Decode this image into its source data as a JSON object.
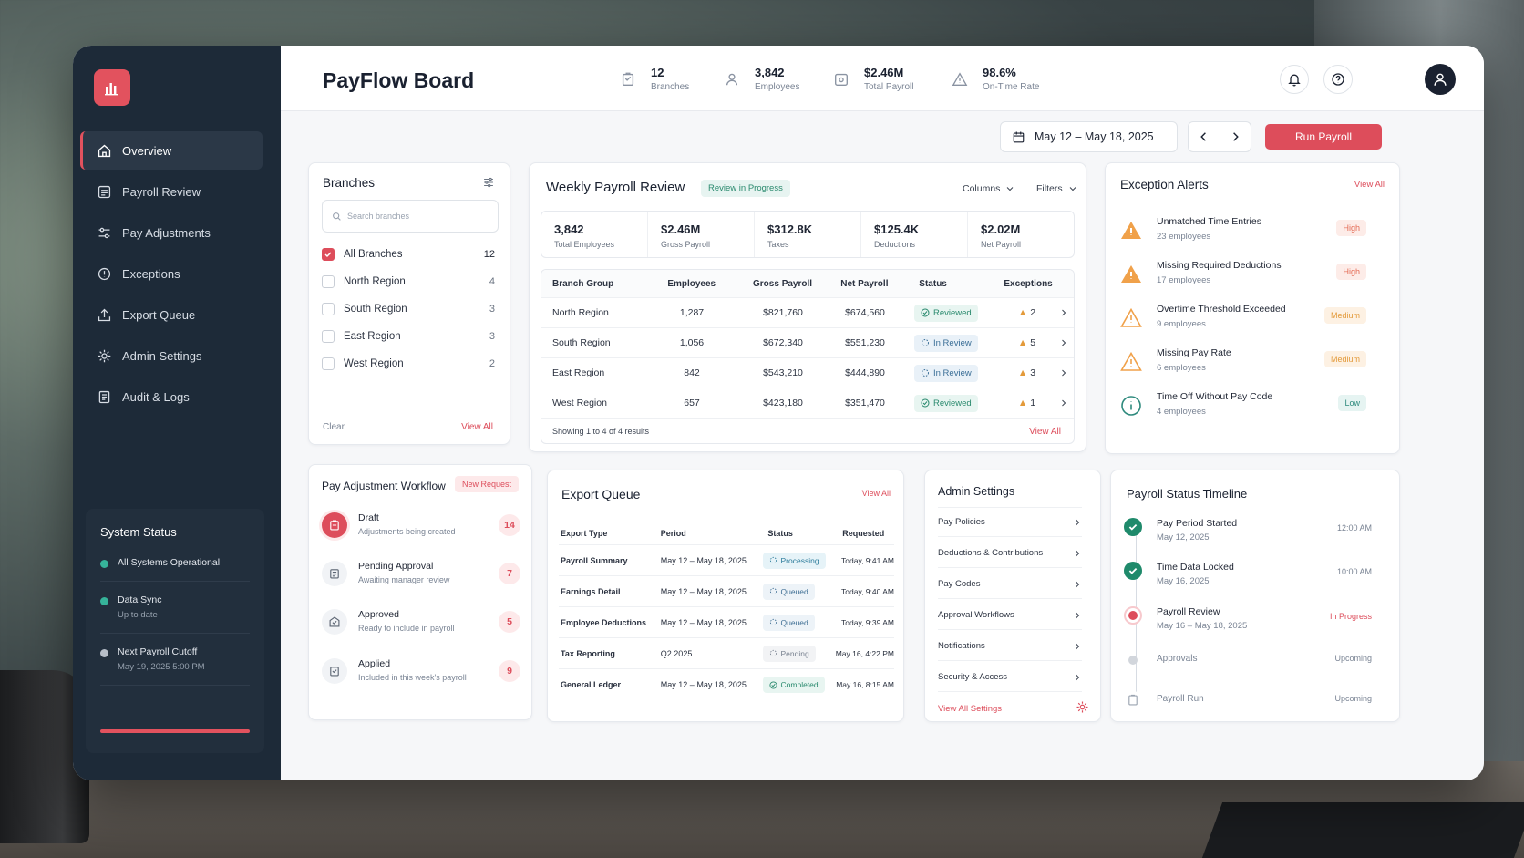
{
  "app": {
    "title": "PayFlow Board"
  },
  "stats": [
    {
      "value": "12",
      "label": "Branches",
      "icon": "branch-icon"
    },
    {
      "value": "3,842",
      "label": "Employees",
      "icon": "users-icon"
    },
    {
      "value": "$2.46M",
      "label": "Total Payroll",
      "icon": "wallet-icon"
    },
    {
      "value": "98.6%",
      "label": "On-Time Rate",
      "icon": "warning-icon"
    }
  ],
  "nav": [
    {
      "label": "Overview",
      "icon": "home-icon"
    },
    {
      "label": "Payroll Review",
      "icon": "review-icon"
    },
    {
      "label": "Pay Adjustments",
      "icon": "adjust-icon"
    },
    {
      "label": "Exceptions",
      "icon": "alert-icon"
    },
    {
      "label": "Export Queue",
      "icon": "export-icon"
    },
    {
      "label": "Admin Settings",
      "icon": "gear-icon"
    },
    {
      "label": "Audit & Logs",
      "icon": "log-icon"
    }
  ],
  "system": {
    "title": "System Status",
    "items": [
      {
        "main": "All Systems Operational",
        "sub": "",
        "color": "#36b39a"
      },
      {
        "main": "Data Sync",
        "sub": "Up to date",
        "color": "#36b39a"
      },
      {
        "main": "Next Payroll Cutoff",
        "sub": "May 19, 2025 5:00 PM",
        "color": "#b7bec8"
      }
    ]
  },
  "toolbar": {
    "date_range": "May 12 – May 18, 2025",
    "run_label": "Run Payroll"
  },
  "branches": {
    "title": "Branches",
    "search_placeholder": "Search branches",
    "items": [
      {
        "label": "All Branches",
        "count": "12",
        "checked": true
      },
      {
        "label": "North Region",
        "count": "4",
        "checked": false
      },
      {
        "label": "South Region",
        "count": "3",
        "checked": false
      },
      {
        "label": "East Region",
        "count": "3",
        "checked": false
      },
      {
        "label": "West Region",
        "count": "2",
        "checked": false
      }
    ],
    "clear": "Clear",
    "view_all": "View All"
  },
  "weekly": {
    "title": "Weekly Payroll Review",
    "badge": "Review in Progress",
    "columns_label": "Columns",
    "filters_label": "Filters",
    "summary": [
      {
        "value": "3,842",
        "label": "Total Employees"
      },
      {
        "value": "$2.46M",
        "label": "Gross Payroll"
      },
      {
        "value": "$312.8K",
        "label": "Taxes"
      },
      {
        "value": "$125.4K",
        "label": "Deductions"
      },
      {
        "value": "$2.02M",
        "label": "Net Payroll"
      }
    ],
    "headers": [
      "Branch Group",
      "Employees",
      "Gross Payroll",
      "Net Payroll",
      "Status",
      "Exceptions"
    ],
    "rows": [
      {
        "group": "North Region",
        "employees": "1,287",
        "gross": "$821,760",
        "net": "$674,560",
        "status": "Reviewed",
        "exceptions": "2"
      },
      {
        "group": "South Region",
        "employees": "1,056",
        "gross": "$672,340",
        "net": "$551,230",
        "status": "In Review",
        "exceptions": "5"
      },
      {
        "group": "East Region",
        "employees": "842",
        "gross": "$543,210",
        "net": "$444,890",
        "status": "In Review",
        "exceptions": "3"
      },
      {
        "group": "West Region",
        "employees": "657",
        "gross": "$423,180",
        "net": "$351,470",
        "status": "Reviewed",
        "exceptions": "1"
      }
    ],
    "footer": "Showing 1 to 4 of 4 results",
    "view_all": "View All"
  },
  "exceptions": {
    "title": "Exception Alerts",
    "view_all": "View All",
    "items": [
      {
        "title": "Unmatched Time Entries",
        "sub": "23 employees",
        "level": "High",
        "icon": "warning-filled-icon"
      },
      {
        "title": "Missing Required Deductions",
        "sub": "17 employees",
        "level": "High",
        "icon": "warning-filled-icon"
      },
      {
        "title": "Overtime Threshold Exceeded",
        "sub": "9 employees",
        "level": "Medium",
        "icon": "warning-outline-icon"
      },
      {
        "title": "Missing Pay Rate",
        "sub": "6 employees",
        "level": "Medium",
        "icon": "warning-outline-icon"
      },
      {
        "title": "Time Off Without Pay Code",
        "sub": "4 employees",
        "level": "Low",
        "icon": "info-icon"
      }
    ]
  },
  "workflow": {
    "title": "Pay Adjustment Workflow",
    "badge": "New Request",
    "items": [
      {
        "title": "Draft",
        "sub": "Adjustments being created",
        "count": "14"
      },
      {
        "title": "Pending Approval",
        "sub": "Awaiting manager review",
        "count": "7"
      },
      {
        "title": "Approved",
        "sub": "Ready to include in payroll",
        "count": "5"
      },
      {
        "title": "Applied",
        "sub": "Included in this week's payroll",
        "count": "9"
      }
    ]
  },
  "export": {
    "title": "Export Queue",
    "view_all": "View All",
    "headers": [
      "Export Type",
      "Period",
      "Status",
      "Requested"
    ],
    "rows": [
      {
        "type": "Payroll Summary",
        "period": "May 12 – May 18, 2025",
        "status": "Processing",
        "requested": "Today, 9:41 AM"
      },
      {
        "type": "Earnings Detail",
        "period": "May 12 – May 18, 2025",
        "status": "Queued",
        "requested": "Today, 9:40 AM"
      },
      {
        "type": "Employee Deductions",
        "period": "May 12 – May 18, 2025",
        "status": "Queued",
        "requested": "Today, 9:39 AM"
      },
      {
        "type": "Tax Reporting",
        "period": "Q2 2025",
        "status": "Pending",
        "requested": "May 16, 4:22 PM"
      },
      {
        "type": "General Ledger",
        "period": "May 12 – May 18, 2025",
        "status": "Completed",
        "requested": "May 16, 8:15 AM"
      }
    ]
  },
  "admin": {
    "title": "Admin Settings",
    "items": [
      "Pay Policies",
      "Deductions & Contributions",
      "Pay Codes",
      "Approval Workflows",
      "Notifications",
      "Security & Access"
    ],
    "view_all": "View All Settings"
  },
  "timeline": {
    "title": "Payroll Status Timeline",
    "items": [
      {
        "title": "Pay Period Started",
        "sub": "May 12, 2025",
        "right": "12:00 AM",
        "state": "done"
      },
      {
        "title": "Time Data Locked",
        "sub": "May 16, 2025",
        "right": "10:00 AM",
        "state": "done"
      },
      {
        "title": "Payroll Review",
        "sub": "May 16 – May 18, 2025",
        "right": "In Progress",
        "state": "active"
      },
      {
        "title": "Approvals",
        "sub": "",
        "right": "Upcoming",
        "state": "upcoming"
      },
      {
        "title": "Payroll Run",
        "sub": "",
        "right": "Upcoming",
        "state": "upcoming"
      }
    ]
  },
  "colors": {
    "accent": "#dd4d5b",
    "sidebar": "#1d2a38",
    "success": "#2a8a6e"
  }
}
